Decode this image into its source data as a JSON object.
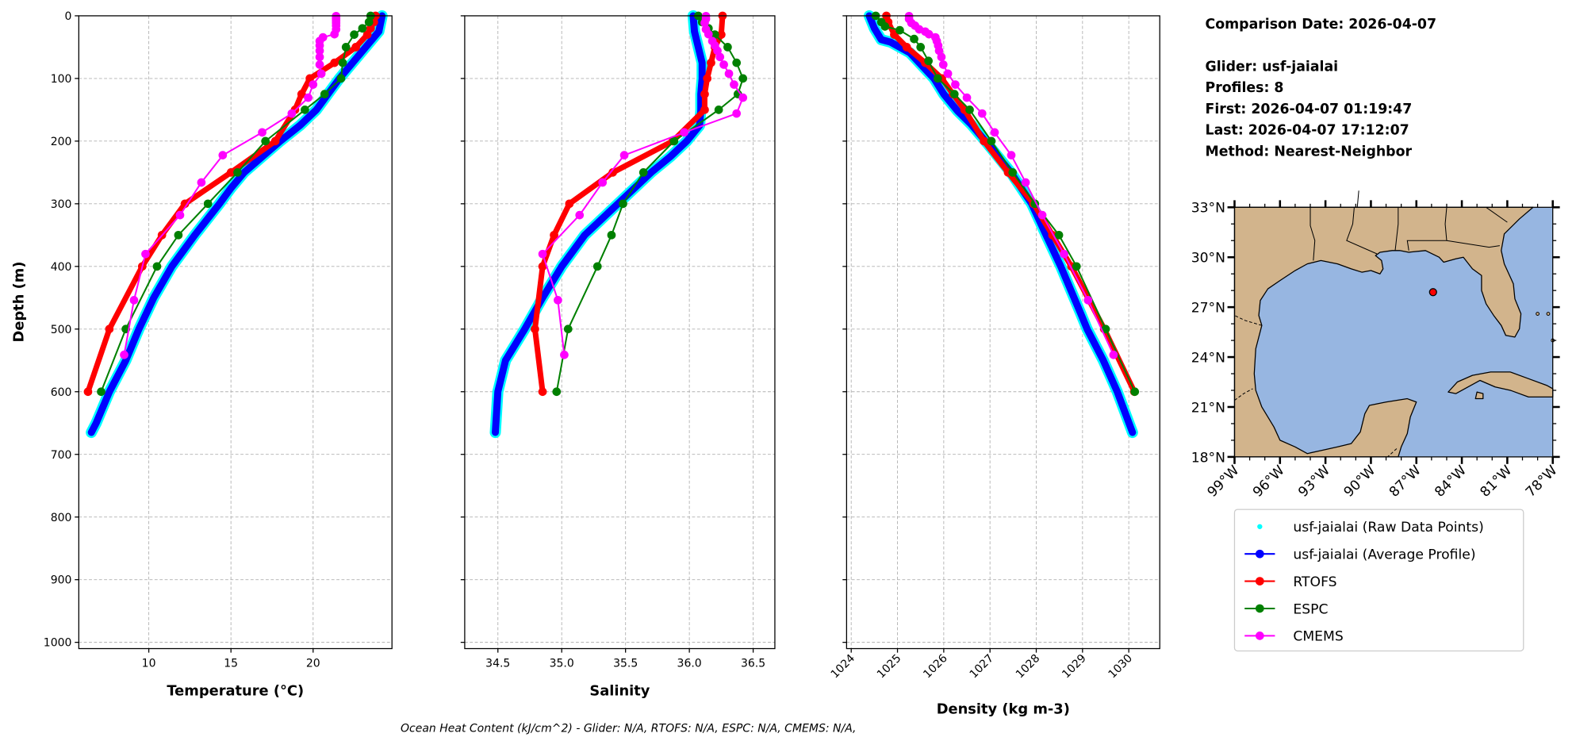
{
  "info": {
    "comparison_date": "Comparison Date: 2026-04-07",
    "glider": "Glider: usf-jaialai",
    "profiles": "Profiles: 8",
    "first": "First: 2026-04-07 01:19:47",
    "last": "Last: 2026-04-07 17:12:07",
    "method": "Method: Nearest-Neighbor"
  },
  "footer": "Ocean Heat Content (kJ/cm^2) - Glider: N/A,  RTOFS: N/A,  ESPC: N/A,  CMEMS: N/A,",
  "colors": {
    "raw": "#00ffff",
    "glider": "#0000ff",
    "rtofs": "#ff0000",
    "espc": "#008000",
    "cmems": "#ff00ff",
    "land": "#d2b48c",
    "water": "#97b6e1"
  },
  "chart_data": {
    "type": "line",
    "y_axis": {
      "label": "Depth (m)",
      "lim": [
        1010,
        0
      ],
      "ticks": [
        0,
        100,
        200,
        300,
        400,
        500,
        600,
        700,
        800,
        900,
        1000
      ],
      "tick_labels": [
        "0",
        "100",
        "200",
        "300",
        "400",
        "500",
        "600",
        "700",
        "800",
        "900",
        "1000"
      ],
      "grid": true
    },
    "legend": [
      {
        "key": "raw",
        "label": "usf-jaialai (Raw Data Points)"
      },
      {
        "key": "glider",
        "label": "usf-jaialai (Average Profile)"
      },
      {
        "key": "rtofs",
        "label": "RTOFS"
      },
      {
        "key": "espc",
        "label": "ESPC"
      },
      {
        "key": "cmems",
        "label": "CMEMS"
      }
    ],
    "panels": [
      {
        "id": "temperature",
        "xlabel": "Temperature (°C)",
        "xlim": [
          5.74,
          24.8
        ],
        "xticks": [
          10,
          15,
          20
        ],
        "xtick_labels": [
          "10",
          "15",
          "20"
        ],
        "series": {
          "glider": [
            [
              0,
              24.2
            ],
            [
              25,
              24.0
            ],
            [
              50,
              23.2
            ],
            [
              75,
              22.4
            ],
            [
              100,
              21.6
            ],
            [
              125,
              20.9
            ],
            [
              150,
              20.2
            ],
            [
              175,
              19.2
            ],
            [
              200,
              18.0
            ],
            [
              225,
              16.9
            ],
            [
              250,
              15.8
            ],
            [
              275,
              15.0
            ],
            [
              300,
              14.3
            ],
            [
              350,
              12.8
            ],
            [
              400,
              11.4
            ],
            [
              450,
              10.3
            ],
            [
              500,
              9.4
            ],
            [
              550,
              8.6
            ],
            [
              600,
              7.6
            ],
            [
              650,
              6.8
            ],
            [
              665,
              6.5
            ]
          ],
          "rtofs": [
            [
              0,
              23.8
            ],
            [
              10,
              23.7
            ],
            [
              20,
              23.5
            ],
            [
              30,
              23.3
            ],
            [
              50,
              22.6
            ],
            [
              75,
              21.3
            ],
            [
              100,
              19.8
            ],
            [
              125,
              19.3
            ],
            [
              150,
              18.9
            ],
            [
              200,
              17.7
            ],
            [
              250,
              15.0
            ],
            [
              300,
              12.2
            ],
            [
              350,
              10.8
            ],
            [
              400,
              9.6
            ],
            [
              500,
              7.6
            ],
            [
              600,
              6.3
            ]
          ],
          "espc": [
            [
              0,
              23.5
            ],
            [
              10,
              23.4
            ],
            [
              20,
              23.0
            ],
            [
              30,
              22.5
            ],
            [
              50,
              22.0
            ],
            [
              75,
              21.8
            ],
            [
              100,
              21.7
            ],
            [
              125,
              20.7
            ],
            [
              150,
              19.5
            ],
            [
              200,
              17.1
            ],
            [
              250,
              15.4
            ],
            [
              300,
              13.6
            ],
            [
              350,
              11.8
            ],
            [
              400,
              10.5
            ],
            [
              500,
              8.6
            ],
            [
              600,
              7.1
            ]
          ],
          "cmems": [
            [
              0.5,
              21.4
            ],
            [
              2.6,
              21.4
            ],
            [
              5,
              21.4
            ],
            [
              7.9,
              21.4
            ],
            [
              11.4,
              21.4
            ],
            [
              15.8,
              21.4
            ],
            [
              21.6,
              21.4
            ],
            [
              29.4,
              21.3
            ],
            [
              34.4,
              20.6
            ],
            [
              40.3,
              20.4
            ],
            [
              47.4,
              20.4
            ],
            [
              55.8,
              20.4
            ],
            [
              65.8,
              20.4
            ],
            [
              77.9,
              20.4
            ],
            [
              92.3,
              20.5
            ],
            [
              109.7,
              20.0
            ],
            [
              130.7,
              19.7
            ],
            [
              155.9,
              18.7
            ],
            [
              186.1,
              16.9
            ],
            [
              222.5,
              14.5
            ],
            [
              266.0,
              13.2
            ],
            [
              318.1,
              11.9
            ],
            [
              380.2,
              9.8
            ],
            [
              453.9,
              9.1
            ],
            [
              541.1,
              8.5
            ]
          ]
        }
      },
      {
        "id": "salinity",
        "xlabel": "Salinity",
        "xlim": [
          34.24,
          36.67
        ],
        "xticks": [
          34.5,
          35.0,
          35.5,
          36.0,
          36.5
        ],
        "xtick_labels": [
          "34.5",
          "35.0",
          "35.5",
          "36.0",
          "36.5"
        ],
        "series": {
          "glider": [
            [
              0,
              36.03
            ],
            [
              25,
              36.04
            ],
            [
              50,
              36.07
            ],
            [
              75,
              36.1
            ],
            [
              100,
              36.1
            ],
            [
              125,
              36.09
            ],
            [
              150,
              36.09
            ],
            [
              175,
              36.08
            ],
            [
              200,
              35.98
            ],
            [
              225,
              35.85
            ],
            [
              250,
              35.7
            ],
            [
              300,
              35.44
            ],
            [
              350,
              35.18
            ],
            [
              400,
              35.0
            ],
            [
              450,
              34.85
            ],
            [
              500,
              34.71
            ],
            [
              550,
              34.56
            ],
            [
              600,
              34.5
            ],
            [
              665,
              34.48
            ]
          ],
          "rtofs": [
            [
              0,
              36.26
            ],
            [
              30,
              36.25
            ],
            [
              50,
              36.2
            ],
            [
              75,
              36.17
            ],
            [
              100,
              36.14
            ],
            [
              125,
              36.12
            ],
            [
              150,
              36.12
            ],
            [
              200,
              35.87
            ],
            [
              250,
              35.4
            ],
            [
              300,
              35.06
            ],
            [
              350,
              34.94
            ],
            [
              400,
              34.85
            ],
            [
              500,
              34.79
            ],
            [
              600,
              34.85
            ]
          ],
          "espc": [
            [
              0,
              36.07
            ],
            [
              10,
              36.1
            ],
            [
              20,
              36.15
            ],
            [
              30,
              36.2
            ],
            [
              50,
              36.3
            ],
            [
              75,
              36.37
            ],
            [
              100,
              36.42
            ],
            [
              125,
              36.38
            ],
            [
              150,
              36.23
            ],
            [
              200,
              35.88
            ],
            [
              250,
              35.64
            ],
            [
              300,
              35.48
            ],
            [
              350,
              35.39
            ],
            [
              400,
              35.28
            ],
            [
              500,
              35.05
            ],
            [
              600,
              34.96
            ]
          ],
          "cmems": [
            [
              0.5,
              36.13
            ],
            [
              5,
              36.13
            ],
            [
              11.4,
              36.12
            ],
            [
              21.6,
              36.13
            ],
            [
              29.4,
              36.15
            ],
            [
              40.3,
              36.18
            ],
            [
              47.4,
              36.2
            ],
            [
              55.8,
              36.22
            ],
            [
              65.8,
              36.24
            ],
            [
              77.9,
              36.27
            ],
            [
              92.3,
              36.31
            ],
            [
              109.7,
              36.35
            ],
            [
              130.7,
              36.42
            ],
            [
              155.9,
              36.37
            ],
            [
              186.1,
              35.96
            ],
            [
              222.5,
              35.49
            ],
            [
              266.0,
              35.32
            ],
            [
              318.1,
              35.14
            ],
            [
              380.2,
              34.85
            ],
            [
              453.9,
              34.97
            ],
            [
              541.1,
              35.02
            ]
          ]
        }
      },
      {
        "id": "density",
        "xlabel": "Density (kg m-3)",
        "xlim": [
          1023.9,
          1030.67
        ],
        "xticks": [
          1024,
          1025,
          1026,
          1027,
          1028,
          1029,
          1030
        ],
        "xtick_labels": [
          "1024",
          "1025",
          "1026",
          "1027",
          "1028",
          "1029",
          "1030"
        ],
        "series": {
          "glider": [
            [
              0,
              1024.39
            ],
            [
              20,
              1024.5
            ],
            [
              38,
              1024.65
            ],
            [
              42,
              1024.85
            ],
            [
              59,
              1025.27
            ],
            [
              100,
              1025.79
            ],
            [
              125,
              1026.0
            ],
            [
              152,
              1026.3
            ],
            [
              173,
              1026.59
            ],
            [
              200,
              1026.9
            ],
            [
              250,
              1027.45
            ],
            [
              300,
              1027.9
            ],
            [
              356,
              1028.25
            ],
            [
              400,
              1028.53
            ],
            [
              475,
              1028.96
            ],
            [
              500,
              1029.1
            ],
            [
              550,
              1029.45
            ],
            [
              600,
              1029.75
            ],
            [
              665,
              1030.08
            ]
          ],
          "rtofs": [
            [
              0,
              1024.76
            ],
            [
              10,
              1024.8
            ],
            [
              30,
              1024.93
            ],
            [
              50,
              1025.2
            ],
            [
              75,
              1025.6
            ],
            [
              100,
              1025.96
            ],
            [
              125,
              1026.2
            ],
            [
              150,
              1026.45
            ],
            [
              200,
              1026.87
            ],
            [
              250,
              1027.39
            ],
            [
              300,
              1027.94
            ],
            [
              350,
              1028.35
            ],
            [
              400,
              1028.76
            ],
            [
              500,
              1029.47
            ],
            [
              600,
              1030.12
            ]
          ],
          "espc": [
            [
              0,
              1024.53
            ],
            [
              10,
              1024.65
            ],
            [
              17,
              1024.73
            ],
            [
              23,
              1025.05
            ],
            [
              37,
              1025.36
            ],
            [
              50,
              1025.5
            ],
            [
              72,
              1025.67
            ],
            [
              100,
              1025.87
            ],
            [
              125,
              1026.23
            ],
            [
              150,
              1026.56
            ],
            [
              200,
              1027.03
            ],
            [
              250,
              1027.49
            ],
            [
              300,
              1027.97
            ],
            [
              350,
              1028.49
            ],
            [
              400,
              1028.87
            ],
            [
              500,
              1029.5
            ],
            [
              600,
              1030.13
            ]
          ],
          "cmems": [
            [
              0.5,
              1025.25
            ],
            [
              5,
              1025.25
            ],
            [
              11.4,
              1025.3
            ],
            [
              15.8,
              1025.38
            ],
            [
              21.6,
              1025.47
            ],
            [
              25.2,
              1025.6
            ],
            [
              29.4,
              1025.68
            ],
            [
              34.4,
              1025.82
            ],
            [
              40.3,
              1025.85
            ],
            [
              47.4,
              1025.88
            ],
            [
              55.8,
              1025.9
            ],
            [
              65.8,
              1025.95
            ],
            [
              77.9,
              1025.99
            ],
            [
              92.3,
              1026.09
            ],
            [
              109.7,
              1026.25
            ],
            [
              130.7,
              1026.5
            ],
            [
              155.9,
              1026.83
            ],
            [
              186.1,
              1027.1
            ],
            [
              222.5,
              1027.46
            ],
            [
              266.0,
              1027.77
            ],
            [
              318.1,
              1028.13
            ],
            [
              380.2,
              1028.6
            ],
            [
              453.9,
              1029.12
            ],
            [
              541.1,
              1029.67
            ]
          ]
        }
      }
    ],
    "map": {
      "lon_lim": [
        -99,
        -78
      ],
      "lat_lim": [
        18,
        33
      ],
      "lat_ticks": [
        18,
        21,
        24,
        27,
        30,
        33
      ],
      "lat_tick_labels": [
        "18°N",
        "21°N",
        "24°N",
        "27°N",
        "30°N",
        "33°N"
      ],
      "lon_ticks": [
        -99,
        -96,
        -93,
        -90,
        -87,
        -84,
        -81,
        -78
      ],
      "lon_tick_labels": [
        "99°W",
        "96°W",
        "93°W",
        "90°W",
        "87°W",
        "84°W",
        "81°W",
        "78°W"
      ],
      "glider_position": [
        -85.9,
        27.9
      ]
    }
  }
}
